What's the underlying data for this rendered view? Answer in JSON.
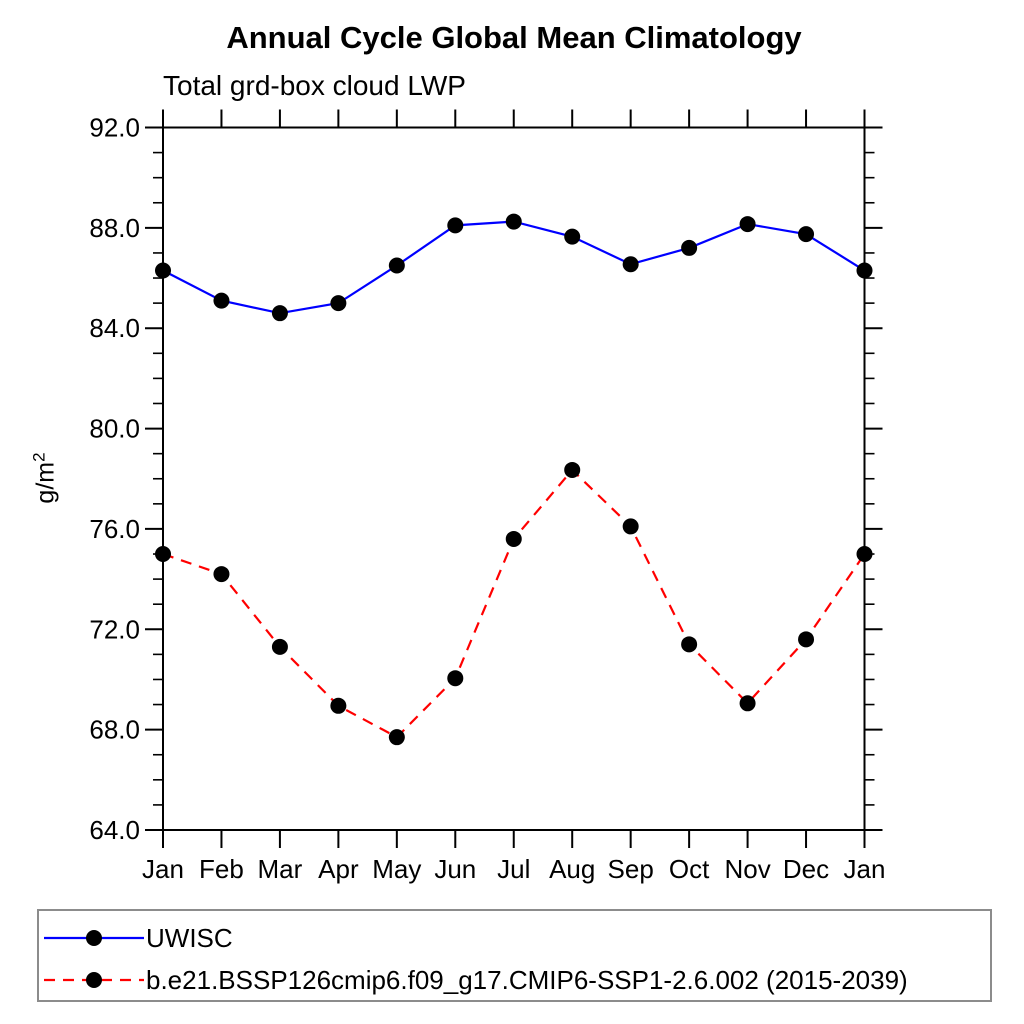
{
  "title": "Annual Cycle Global Mean Climatology",
  "subtitle": "Total grd-box cloud LWP",
  "ylabel": "g/m",
  "ylabel_superscript": "2",
  "chart_data": {
    "type": "line",
    "categories": [
      "Jan",
      "Feb",
      "Mar",
      "Apr",
      "May",
      "Jun",
      "Jul",
      "Aug",
      "Sep",
      "Oct",
      "Nov",
      "Dec",
      "Jan"
    ],
    "series": [
      {
        "name": "UWISC",
        "color": "#0000ff",
        "line_style": "solid",
        "marker": "filled-circle",
        "marker_color": "#000000",
        "values": [
          86.3,
          85.1,
          84.6,
          85.0,
          86.5,
          88.1,
          88.25,
          87.65,
          86.55,
          87.2,
          88.15,
          87.75,
          86.3
        ]
      },
      {
        "name": "b.e21.BSSP126cmip6.f09_g17.CMIP6-SSP1-2.6.002 (2015-2039)",
        "color": "#ff0000",
        "line_style": "dashed",
        "marker": "filled-circle",
        "marker_color": "#000000",
        "values": [
          75.0,
          74.2,
          71.3,
          68.95,
          67.7,
          70.05,
          75.6,
          78.35,
          76.1,
          71.4,
          69.05,
          71.6,
          75.0
        ]
      }
    ],
    "ylim": [
      64,
      92
    ],
    "ytick_major_interval": 4,
    "ytick_minor_interval": 1,
    "ytick_labels": [
      "64.0",
      "68.0",
      "72.0",
      "76.0",
      "80.0",
      "84.0",
      "88.0",
      "92.0"
    ],
    "axis_color": "#000000",
    "grid": false,
    "legend_position": "bottom-left"
  }
}
